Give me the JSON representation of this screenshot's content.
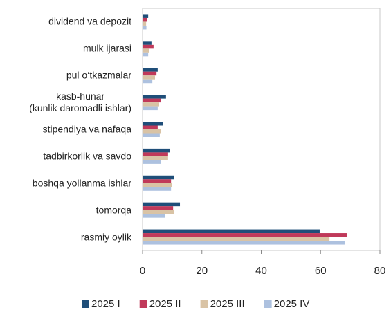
{
  "chart_data": {
    "type": "bar",
    "orientation": "horizontal",
    "categories": [
      "dividend va depozit",
      "mulk ijarasi",
      "pul o‘tkazmalar",
      "kasb-hunar\n(kunlik daromadli ishlar)",
      "stipendiya va nafaqa",
      "tadbirkorlik va savdo",
      "boshqa yollanma ishlar",
      "tomorqa",
      "rasmiy oylik"
    ],
    "series": [
      {
        "name": "2025 I",
        "color": "#1f4e79",
        "values": [
          1.9,
          3.0,
          5.1,
          7.9,
          6.8,
          9.1,
          10.7,
          12.6,
          59.7
        ]
      },
      {
        "name": "2025 II",
        "color": "#c0395a",
        "values": [
          1.6,
          3.7,
          4.7,
          6.1,
          5.1,
          8.6,
          9.6,
          10.3,
          68.8
        ]
      },
      {
        "name": "2025 III",
        "color": "#d9c3a5",
        "values": [
          1.2,
          2.1,
          4.2,
          5.6,
          6.1,
          8.6,
          9.8,
          10.5,
          63.0
        ]
      },
      {
        "name": "2025 IV",
        "color": "#adc1df",
        "values": [
          1.3,
          1.9,
          3.3,
          5.1,
          5.8,
          6.1,
          9.6,
          7.5,
          68.1
        ]
      }
    ],
    "xlim": [
      0,
      80
    ],
    "xticks": [
      0,
      20,
      40,
      60,
      80
    ],
    "legend": "bottom"
  }
}
